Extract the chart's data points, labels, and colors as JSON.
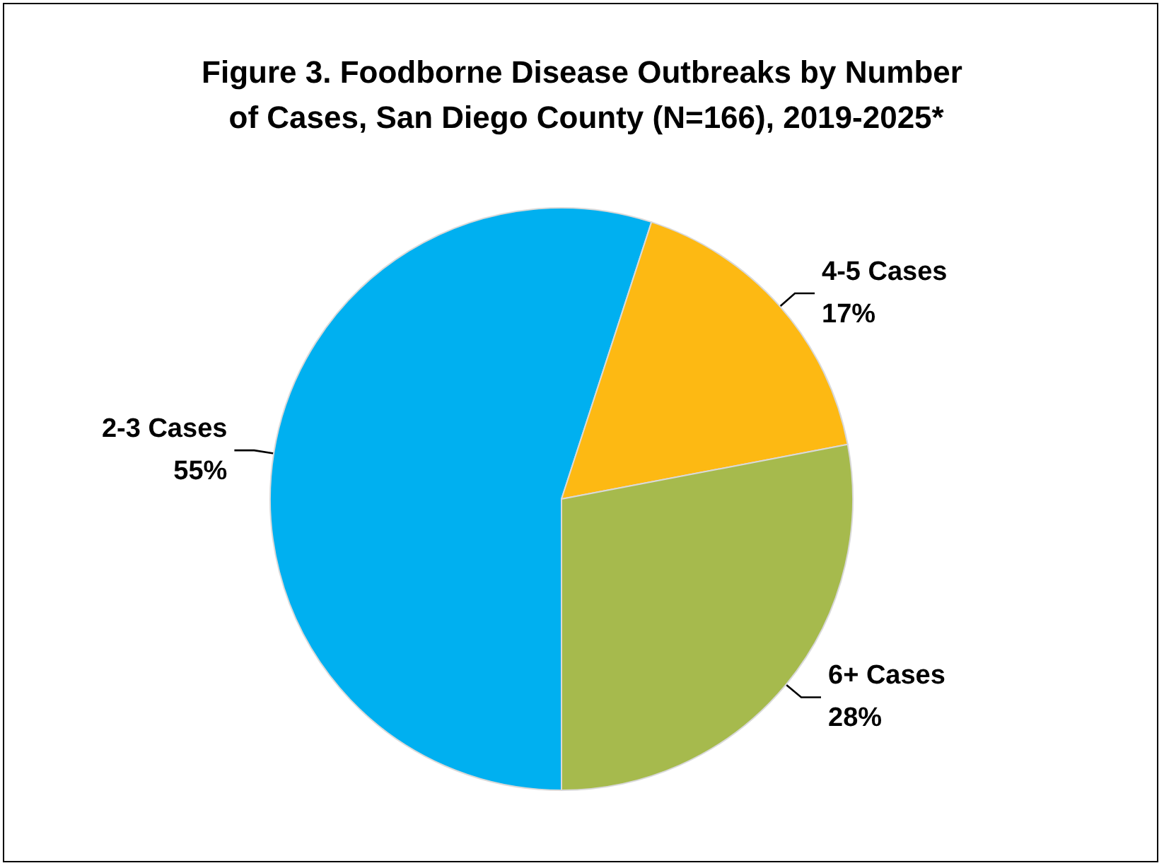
{
  "chart_data": {
    "type": "pie",
    "title": "Figure 3. Foodborne Disease Outbreaks by Number of Cases, San Diego County (N=166), 2019-2025*",
    "categories": [
      "2-3 Cases",
      "4-5 Cases",
      "6+ Cases"
    ],
    "values": [
      55,
      17,
      28
    ],
    "colors": [
      "#00b0f0",
      "#fdb913",
      "#a6ba4d"
    ],
    "value_labels": [
      "55%",
      "17%",
      "28%"
    ],
    "legend": false
  }
}
